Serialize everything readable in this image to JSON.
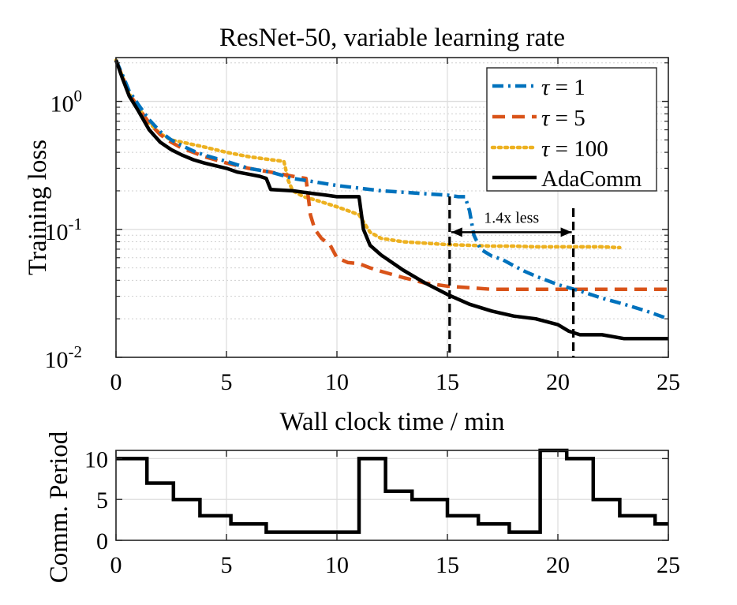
{
  "chart_data": [
    {
      "type": "line",
      "title": "ResNet-50, variable learning rate",
      "xlabel": "Wall clock time / min",
      "ylabel": "Training loss",
      "xlim": [
        0,
        25
      ],
      "ylim": [
        0.01,
        2.2
      ],
      "yscale": "log",
      "xticks": [
        0,
        5,
        10,
        15,
        20,
        25
      ],
      "yticks": [
        {
          "value": 0.01,
          "base": "10",
          "exp": "-2"
        },
        {
          "value": 0.1,
          "base": "10",
          "exp": "-1"
        },
        {
          "value": 1,
          "base": "10",
          "exp": "0"
        }
      ],
      "grid": true,
      "legend_position": "top-right",
      "series": [
        {
          "name": "τ = 1",
          "prefix": "τ",
          "suffix": " = 1",
          "color": "#0072BD",
          "style": "dashdot",
          "x": [
            0,
            0.3,
            0.6,
            1,
            1.5,
            2,
            2.5,
            3,
            3.5,
            4,
            5,
            6,
            7,
            7.5,
            8,
            9,
            10,
            11,
            12,
            13,
            14,
            15,
            15.5,
            15.8,
            16,
            16.2,
            16.5,
            17,
            17.5,
            18,
            18.5,
            19,
            20,
            21,
            22,
            23,
            24,
            25
          ],
          "y": [
            2.1,
            1.6,
            1.2,
            0.95,
            0.72,
            0.58,
            0.5,
            0.45,
            0.41,
            0.38,
            0.34,
            0.3,
            0.28,
            0.265,
            0.25,
            0.235,
            0.22,
            0.21,
            0.2,
            0.195,
            0.19,
            0.185,
            0.18,
            0.18,
            0.14,
            0.09,
            0.07,
            0.062,
            0.058,
            0.052,
            0.047,
            0.043,
            0.037,
            0.033,
            0.029,
            0.026,
            0.023,
            0.02
          ]
        },
        {
          "name": "τ = 5",
          "prefix": "τ",
          "suffix": " = 5",
          "color": "#D95319",
          "style": "dashed",
          "x": [
            0,
            0.3,
            0.6,
            1,
            1.5,
            2,
            2.5,
            3,
            3.5,
            4,
            5,
            6,
            7,
            8,
            8.6,
            8.8,
            9,
            9.3,
            9.7,
            10,
            10.5,
            11,
            11.5,
            12,
            13,
            14,
            15,
            16,
            17,
            18,
            19,
            20,
            21,
            22,
            23,
            24,
            25
          ],
          "y": [
            2.1,
            1.55,
            1.15,
            0.9,
            0.68,
            0.55,
            0.48,
            0.43,
            0.4,
            0.37,
            0.33,
            0.3,
            0.28,
            0.26,
            0.25,
            0.13,
            0.1,
            0.085,
            0.075,
            0.06,
            0.055,
            0.054,
            0.05,
            0.047,
            0.042,
            0.038,
            0.036,
            0.035,
            0.034,
            0.034,
            0.034,
            0.034,
            0.034,
            0.034,
            0.034,
            0.034,
            0.034
          ]
        },
        {
          "name": "τ = 100",
          "prefix": "τ",
          "suffix": " = 100",
          "color": "#EDB120",
          "style": "dotted",
          "x": [
            0,
            0.3,
            0.6,
            1,
            1.5,
            2,
            2.5,
            3,
            4,
            5,
            6,
            7,
            7.6,
            7.8,
            8,
            8.5,
            9,
            9.5,
            10,
            10.5,
            11,
            11.5,
            12,
            13,
            14,
            15,
            16,
            17,
            18,
            19,
            20,
            21,
            22,
            22.8
          ],
          "y": [
            2.1,
            1.55,
            1.15,
            0.9,
            0.68,
            0.56,
            0.5,
            0.48,
            0.44,
            0.4,
            0.37,
            0.35,
            0.34,
            0.24,
            0.2,
            0.18,
            0.17,
            0.16,
            0.15,
            0.14,
            0.13,
            0.095,
            0.085,
            0.08,
            0.078,
            0.076,
            0.075,
            0.074,
            0.074,
            0.073,
            0.073,
            0.073,
            0.073,
            0.072
          ]
        },
        {
          "name": "AdaComm",
          "prefix": "AdaComm",
          "suffix": "",
          "color": "#000000",
          "style": "solid",
          "x": [
            0,
            0.3,
            0.6,
            1,
            1.5,
            2,
            2.5,
            3,
            3.5,
            4,
            5,
            5.5,
            6,
            6.5,
            6.8,
            7,
            8,
            9,
            9.5,
            10,
            10.5,
            11,
            11.2,
            11.5,
            12,
            13,
            14,
            15,
            16,
            17,
            18,
            19,
            20,
            20.5,
            21,
            22,
            23,
            24,
            25
          ],
          "y": [
            2.1,
            1.5,
            1.1,
            0.85,
            0.6,
            0.48,
            0.42,
            0.38,
            0.35,
            0.33,
            0.3,
            0.28,
            0.27,
            0.26,
            0.25,
            0.205,
            0.2,
            0.19,
            0.185,
            0.18,
            0.18,
            0.18,
            0.1,
            0.075,
            0.063,
            0.048,
            0.038,
            0.031,
            0.026,
            0.023,
            0.021,
            0.02,
            0.018,
            0.016,
            0.015,
            0.015,
            0.014,
            0.014,
            0.014
          ]
        }
      ],
      "annotation": {
        "text": "1.4x less",
        "x_start": 15.1,
        "x_end": 20.7,
        "y": 0.095
      }
    },
    {
      "type": "line",
      "title": "",
      "xlabel": "",
      "ylabel": "Comm. Period",
      "xlim": [
        0,
        25
      ],
      "ylim": [
        0,
        11
      ],
      "xticks": [
        0,
        5,
        10,
        15,
        20,
        25
      ],
      "yticks": [
        0,
        5,
        10
      ],
      "grid": true,
      "series": [
        {
          "name": "AdaComm",
          "color": "#000000",
          "style": "solid",
          "x": [
            0,
            1.4,
            1.4,
            2.6,
            2.6,
            3.8,
            3.8,
            5.2,
            5.2,
            6.8,
            6.8,
            11.0,
            11.0,
            12.2,
            12.2,
            13.4,
            13.4,
            15.0,
            15.0,
            16.4,
            16.4,
            17.8,
            17.8,
            19.2,
            19.2,
            20.4,
            20.4,
            21.6,
            21.6,
            22.8,
            22.8,
            24.4,
            24.4,
            25
          ],
          "y": [
            10,
            10,
            7,
            7,
            5,
            5,
            3,
            3,
            2,
            2,
            1,
            1,
            10,
            10,
            6,
            6,
            5,
            5,
            3,
            3,
            2,
            2,
            1,
            1,
            11,
            11,
            10,
            10,
            5,
            5,
            3,
            3,
            2,
            2
          ]
        }
      ]
    }
  ]
}
